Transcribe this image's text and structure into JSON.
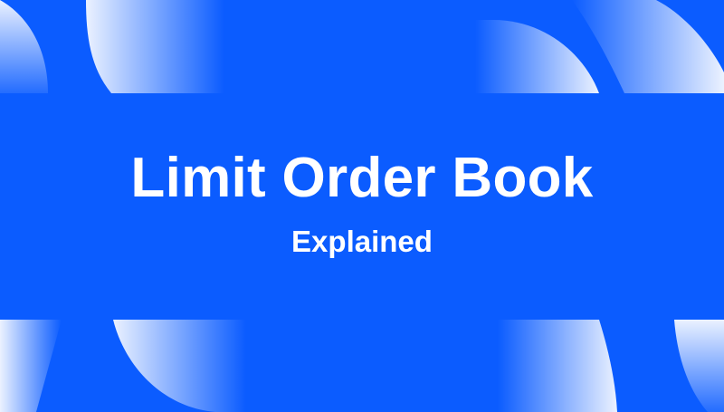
{
  "banner": {
    "title": "Limit Order Book",
    "subtitle": "Explained"
  },
  "colors": {
    "background": "#0b5cff",
    "shape_light": "#ffffff",
    "text": "#ffffff"
  }
}
